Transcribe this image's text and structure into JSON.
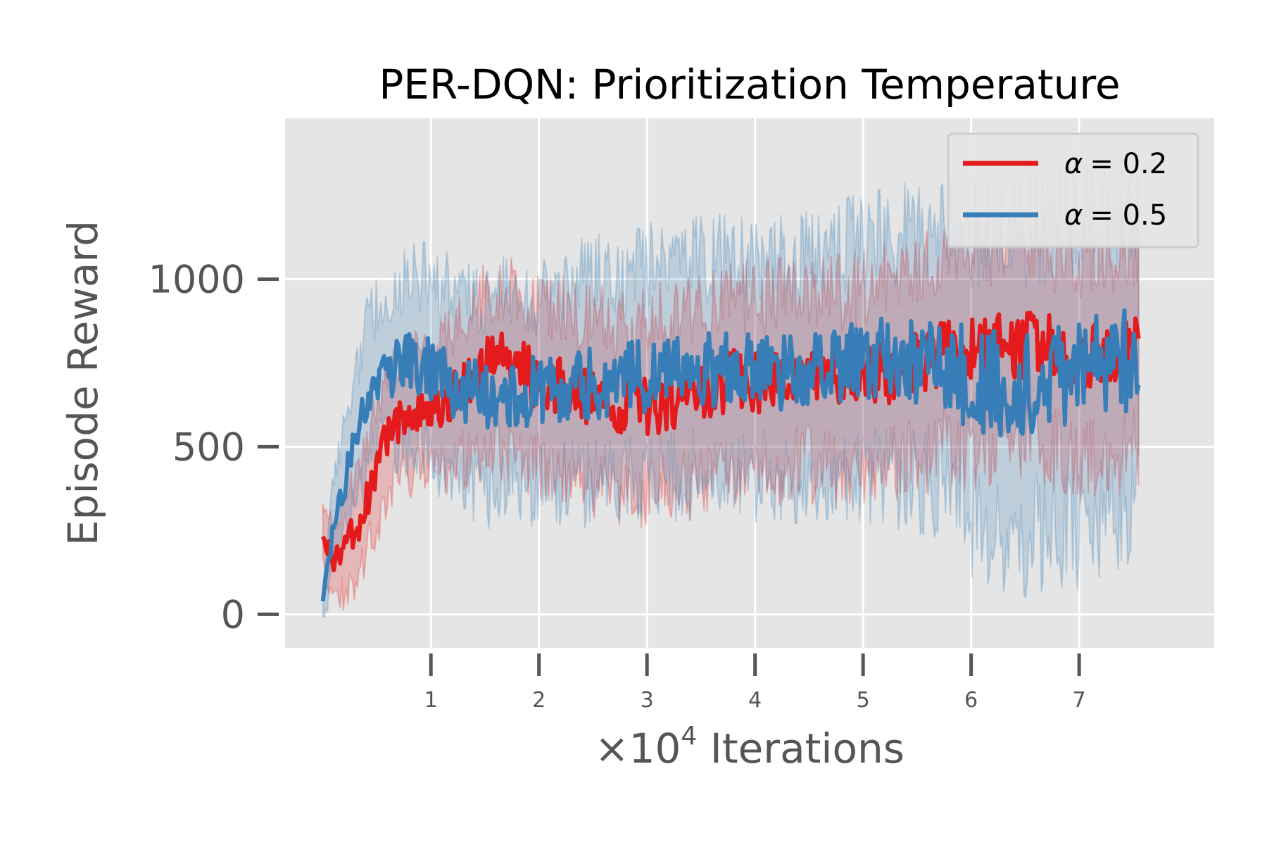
{
  "chart_data": {
    "type": "line",
    "title": "PER-DQN: Prioritization Temperature",
    "xlabel_prefix": "×10",
    "xlabel_exponent": "4",
    "xlabel_suffix": " Iterations",
    "ylabel": "Episode Reward",
    "xlim": [
      -0.35,
      8.25
    ],
    "ylim": [
      -100,
      1480
    ],
    "xticks": [
      1,
      2,
      3,
      4,
      5,
      6,
      7
    ],
    "xtick_labels": [
      "1",
      "2",
      "3",
      "4",
      "5",
      "6",
      "7"
    ],
    "yticks": [
      0,
      500,
      1000
    ],
    "ytick_labels": [
      "0",
      "500",
      "1000"
    ],
    "grid": true,
    "legend_position": "top-right",
    "colors": {
      "background": "#e5e5e5",
      "grid": "#ffffff",
      "tick": "#555555"
    },
    "series": [
      {
        "name": "α = 0.2",
        "legend_symbol": "α",
        "legend_value": "= 0.2",
        "color": "#e41a1c",
        "x": [
          0.0,
          0.1,
          0.2,
          0.3,
          0.4,
          0.5,
          0.6,
          0.7,
          0.8,
          0.9,
          1.0,
          1.2,
          1.4,
          1.6,
          1.8,
          2.0,
          2.2,
          2.4,
          2.6,
          2.8,
          3.0,
          3.2,
          3.4,
          3.6,
          3.8,
          4.0,
          4.2,
          4.4,
          4.6,
          4.8,
          5.0,
          5.2,
          5.4,
          5.6,
          5.8,
          6.0,
          6.2,
          6.4,
          6.6,
          6.8,
          7.0,
          7.2,
          7.4,
          7.55
        ],
        "values": [
          230,
          160,
          200,
          250,
          330,
          450,
          540,
          570,
          590,
          600,
          610,
          650,
          720,
          760,
          740,
          690,
          680,
          650,
          640,
          630,
          620,
          640,
          660,
          670,
          700,
          690,
          700,
          720,
          710,
          700,
          710,
          720,
          740,
          760,
          780,
          780,
          790,
          800,
          810,
          780,
          760,
          770,
          790,
          800
        ],
        "band_low": [
          140,
          60,
          60,
          90,
          180,
          270,
          360,
          400,
          420,
          430,
          430,
          440,
          480,
          500,
          480,
          430,
          420,
          390,
          370,
          360,
          350,
          370,
          390,
          400,
          430,
          420,
          430,
          450,
          440,
          420,
          430,
          440,
          460,
          480,
          500,
          490,
          500,
          510,
          520,
          490,
          460,
          470,
          490,
          500
        ],
        "band_high": [
          320,
          260,
          330,
          410,
          500,
          620,
          720,
          750,
          760,
          780,
          790,
          840,
          920,
          980,
          960,
          920,
          910,
          880,
          880,
          870,
          870,
          890,
          900,
          920,
          950,
          940,
          950,
          980,
          970,
          960,
          980,
          1000,
          1020,
          1040,
          1060,
          1060,
          1080,
          1100,
          1110,
          1080,
          1050,
          1070,
          1100,
          1110
        ]
      },
      {
        "name": "α = 0.5",
        "legend_symbol": "α",
        "legend_value": "= 0.5",
        "color": "#377eb8",
        "x": [
          0.0,
          0.1,
          0.2,
          0.3,
          0.4,
          0.5,
          0.6,
          0.7,
          0.8,
          0.9,
          1.0,
          1.2,
          1.4,
          1.6,
          1.8,
          2.0,
          2.2,
          2.4,
          2.6,
          2.8,
          3.0,
          3.2,
          3.4,
          3.6,
          3.8,
          4.0,
          4.2,
          4.4,
          4.6,
          4.8,
          5.0,
          5.2,
          5.4,
          5.6,
          5.8,
          6.0,
          6.2,
          6.4,
          6.6,
          6.8,
          7.0,
          7.2,
          7.4,
          7.55
        ],
        "values": [
          40,
          280,
          400,
          500,
          640,
          700,
          720,
          740,
          750,
          740,
          730,
          680,
          660,
          650,
          660,
          670,
          680,
          690,
          690,
          700,
          710,
          720,
          730,
          730,
          740,
          730,
          720,
          730,
          740,
          750,
          760,
          760,
          770,
          750,
          740,
          700,
          690,
          690,
          700,
          720,
          720,
          740,
          760,
          750
        ],
        "band_low": [
          -30,
          150,
          240,
          320,
          430,
          480,
          500,
          510,
          510,
          490,
          470,
          420,
          390,
          370,
          380,
          380,
          390,
          390,
          390,
          400,
          400,
          410,
          420,
          420,
          420,
          410,
          400,
          410,
          420,
          420,
          420,
          410,
          400,
          370,
          340,
          280,
          250,
          240,
          250,
          270,
          270,
          300,
          330,
          320
        ],
        "band_high": [
          110,
          420,
          570,
          690,
          850,
          920,
          950,
          980,
          1000,
          1000,
          1000,
          960,
          950,
          950,
          960,
          970,
          990,
          1000,
          1010,
          1020,
          1030,
          1050,
          1060,
          1060,
          1070,
          1060,
          1060,
          1070,
          1080,
          1100,
          1110,
          1120,
          1140,
          1140,
          1150,
          1140,
          1140,
          1150,
          1160,
          1180,
          1180,
          1190,
          1200,
          1190
        ]
      }
    ]
  }
}
